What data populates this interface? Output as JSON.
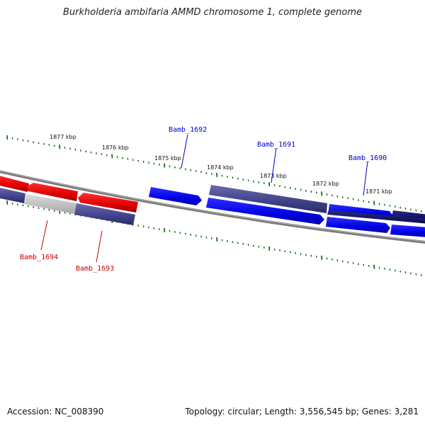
{
  "title": "Burkholderia ambifaria AMMD chromosome 1, complete genome",
  "footer": {
    "accession": "Accession: NC_008390",
    "summary": "Topology: circular; Length: 3,556,545 bp; Genes: 3,281"
  },
  "ticks": [
    {
      "label": "1877 kbp"
    },
    {
      "label": "1876 kbp"
    },
    {
      "label": "1875 kbp"
    },
    {
      "label": "1874 kbp"
    },
    {
      "label": "1873 kbp"
    },
    {
      "label": "1872 kbp"
    },
    {
      "label": "1871 kbp"
    }
  ],
  "genes": [
    {
      "name": "Bamb_1694",
      "strand": "reverse",
      "color": "#cc0000"
    },
    {
      "name": "Bamb_1693",
      "strand": "reverse",
      "color": "#cc0000"
    },
    {
      "name": "Bamb_1692",
      "strand": "forward",
      "color": "#0000cc"
    },
    {
      "name": "Bamb_1691",
      "strand": "forward",
      "color": "#0000cc"
    },
    {
      "name": "Bamb_1690",
      "strand": "forward",
      "color": "#0000cc"
    }
  ],
  "colors": {
    "backbone": "#808080",
    "tick_green": "#006400",
    "forward_gene": "#0000ee",
    "reverse_gene": "#ee0000",
    "feature_slate": "#3c3c8c",
    "feature_gray": "#b4b4b4"
  }
}
